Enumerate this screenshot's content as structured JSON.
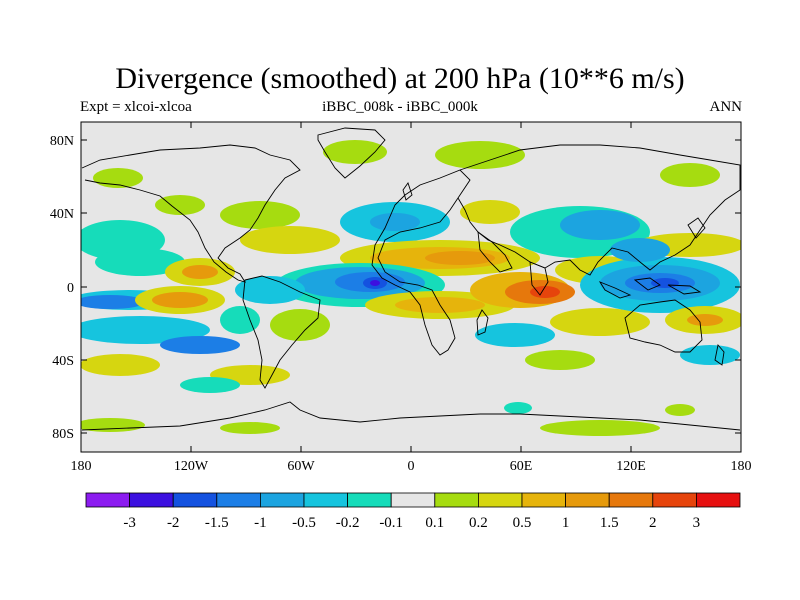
{
  "title": "Divergence (smoothed) at 200 hPa (10**6 m/s)",
  "experiment": "Expt = xlcoi-xlcoa",
  "difference": "iBBC_008k - iBBC_000k",
  "season": "ANN",
  "y_ticks": [
    "80N",
    "40N",
    "0",
    "40S",
    "80S"
  ],
  "x_ticks": [
    "180",
    "120W",
    "60W",
    "0",
    "60E",
    "120E",
    "180"
  ],
  "colorbar": {
    "colors": [
      "#8c1cf0",
      "#3c10e0",
      "#1452e0",
      "#1c7ee6",
      "#1ca4e0",
      "#16c4de",
      "#16dcba",
      "#e6e6e6",
      "#a6dc10",
      "#d6d610",
      "#e6b40c",
      "#e69a0c",
      "#e6780c",
      "#e6440c",
      "#e61010"
    ],
    "labels": [
      "-3",
      "-2",
      "-1.5",
      "-1",
      "-0.5",
      "-0.2",
      "-0.1",
      "0.1",
      "0.2",
      "0.5",
      "1",
      "1.5",
      "2",
      "3"
    ]
  },
  "chart_data": {
    "type": "heatmap",
    "title": "Divergence (smoothed) at 200 hPa (10**6 m/s)",
    "variable": "200 hPa divergence difference",
    "units": "10**6 m/s",
    "x_range": [
      -180,
      180
    ],
    "y_range": [
      -90,
      90
    ],
    "levels": [
      -3,
      -2,
      -1.5,
      -1,
      -0.5,
      -0.2,
      -0.1,
      0.1,
      0.2,
      0.5,
      1,
      1.5,
      2,
      3
    ],
    "features": [
      {
        "region": "Western Pacific / Maritime Continent",
        "lon": 140,
        "lat": 0,
        "sign": "negative",
        "approx_value": -1.5
      },
      {
        "region": "Eastern Indian Ocean",
        "lon": 65,
        "lat": 0,
        "sign": "positive",
        "approx_value": 1.5
      },
      {
        "region": "Tropical Atlantic",
        "lon": -20,
        "lat": 2,
        "sign": "negative",
        "approx_value": -2
      },
      {
        "region": "Central Pacific south of equator",
        "lon": -140,
        "lat": -10,
        "sign": "positive",
        "approx_value": 1
      },
      {
        "region": "North Africa / Mediterranean",
        "lon": 15,
        "lat": 15,
        "sign": "positive",
        "approx_value": 0.5
      },
      {
        "region": "Eastern Pacific equatorial",
        "lon": -120,
        "lat": 0,
        "sign": "positive",
        "approx_value": 0.5
      },
      {
        "region": "South Pacific convergence",
        "lon": -165,
        "lat": -20,
        "sign": "negative",
        "approx_value": -0.5
      },
      {
        "region": "Southern Ocean",
        "lon": 40,
        "lat": -60,
        "sign": "positive",
        "approx_value": 0.2
      }
    ]
  }
}
